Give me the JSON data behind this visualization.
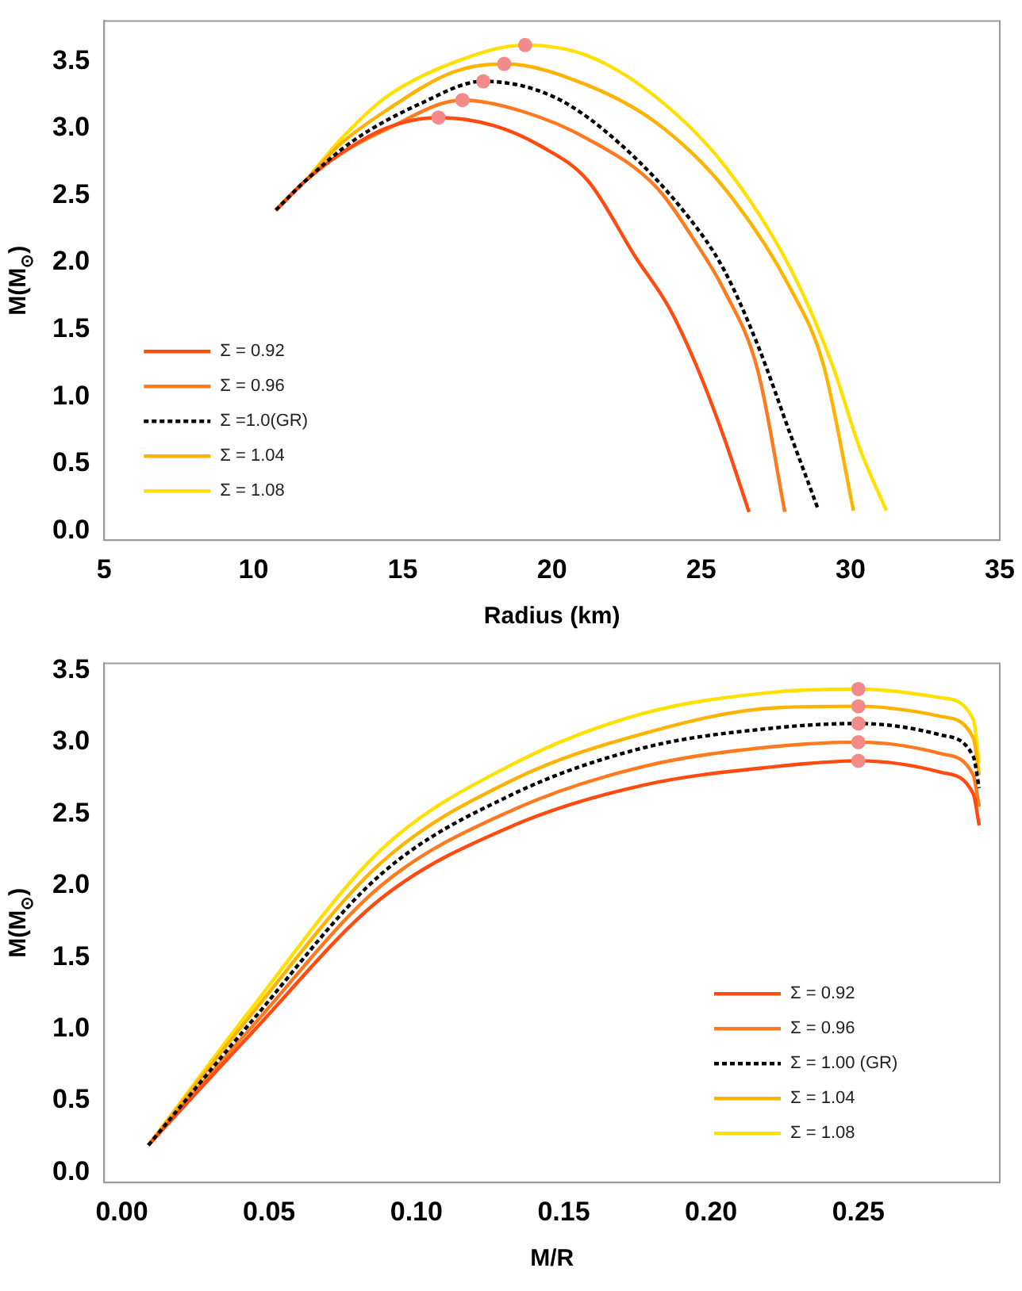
{
  "chart_data": [
    {
      "type": "line",
      "xlabel": "Radius (km)",
      "ylabel": "M(M$_{⊙}$)",
      "xlim": [
        5,
        35
      ],
      "ylim": [
        -0.07,
        3.8
      ],
      "xticks": [
        5,
        10,
        15,
        20,
        25,
        30,
        35
      ],
      "yticks": [
        {
          "value": 0,
          "label": "0.0"
        },
        0.5,
        {
          "value": 1,
          "label": "1.0"
        },
        1.5,
        {
          "value": 2,
          "label": "2.0"
        },
        2.5,
        {
          "value": 3,
          "label": "3.0"
        },
        3.5
      ],
      "grid": false,
      "legend": "bottom left",
      "marker": "none",
      "series": [
        {
          "name": "Σ = 0.92",
          "color": "#ff4a10",
          "line_style": "solid",
          "x": [
            10.75,
            11.7,
            12.85,
            14.43,
            16.2,
            18.05,
            19.6,
            21.2,
            22.8,
            23.93,
            24.84,
            25.74,
            26.6
          ],
          "values": [
            2.39,
            2.6,
            2.8,
            3.0,
            3.08,
            3.02,
            2.87,
            2.61,
            2.04,
            1.66,
            1.23,
            0.71,
            0.14
          ]
        },
        {
          "name": "Σ = 0.96",
          "color": "#ff7a1e",
          "line_style": "solid",
          "x": [
            10.75,
            11.7,
            12.85,
            14.43,
            17.0,
            18.95,
            21.2,
            23.5,
            24.84,
            25.75,
            26.9,
            27.8
          ],
          "values": [
            2.39,
            2.6,
            2.8,
            2.99,
            3.21,
            3.13,
            2.92,
            2.56,
            2.14,
            1.8,
            1.19,
            0.14
          ]
        },
        {
          "name": "Σ =1.0(GR)",
          "color": "#000000",
          "line_style": "dashed",
          "x": [
            10.75,
            11.7,
            13.3,
            15.56,
            17.7,
            20.1,
            22.35,
            24.6,
            25.75,
            26.9,
            28.0,
            28.9
          ],
          "values": [
            2.39,
            2.6,
            2.9,
            3.18,
            3.35,
            3.23,
            2.87,
            2.33,
            1.95,
            1.38,
            0.71,
            0.17
          ]
        },
        {
          "name": "Σ = 1.04",
          "color": "#ffb300",
          "line_style": "solid",
          "x": [
            10.75,
            11.7,
            12.85,
            14.43,
            16.7,
            18.4,
            21.2,
            23.5,
            25.75,
            28.0,
            29.1,
            30.1
          ],
          "values": [
            2.39,
            2.6,
            2.87,
            3.13,
            3.42,
            3.48,
            3.32,
            3.04,
            2.56,
            1.8,
            1.23,
            0.15
          ]
        },
        {
          "name": "Σ = 1.08",
          "color": "#ffe000",
          "line_style": "solid",
          "x": [
            10.75,
            11.7,
            12.85,
            14.43,
            16.7,
            19.1,
            21.2,
            23.5,
            25.75,
            28.0,
            29.4,
            30.3,
            31.2
          ],
          "values": [
            2.39,
            2.6,
            2.9,
            3.23,
            3.49,
            3.62,
            3.54,
            3.23,
            2.73,
            1.95,
            1.23,
            0.62,
            0.15
          ]
        },
        {
          "type": "scatter",
          "color": "#f28a8a",
          "marker": "circle",
          "x": [
            16.2,
            17.0,
            17.7,
            18.4,
            19.1
          ],
          "values": [
            3.08,
            3.21,
            3.35,
            3.48,
            3.62
          ]
        }
      ]
    },
    {
      "type": "line",
      "xlabel": "M/R",
      "ylabel": "M(M$_{⊙}$)",
      "xlim": [
        -0.006,
        0.298
      ],
      "ylim": [
        -0.07,
        3.55
      ],
      "xticks": [
        {
          "value": 0,
          "label": "0.00"
        },
        0.05,
        {
          "value": 0.1,
          "label": "0.10"
        },
        0.15,
        {
          "value": 0.2,
          "label": "0.20"
        },
        0.25
      ],
      "yticks": [
        {
          "value": 0,
          "label": "0.0"
        },
        0.5,
        {
          "value": 1,
          "label": "1.0"
        },
        1.5,
        {
          "value": 2,
          "label": "2.0"
        },
        2.5,
        {
          "value": 3,
          "label": "3.0"
        },
        3.5
      ],
      "grid": false,
      "legend": "bottom right",
      "marker": "none",
      "series": [
        {
          "name": "Σ = 0.92",
          "color": "#ff4a10",
          "line_style": "solid",
          "x": [
            0.009,
            0.0435,
            0.088,
            0.133,
            0.177,
            0.222,
            0.25,
            0.278,
            0.289,
            0.291
          ],
          "values": [
            0.19,
            0.96,
            1.91,
            2.42,
            2.7,
            2.83,
            2.87,
            2.79,
            2.64,
            2.42
          ]
        },
        {
          "name": "Σ = 0.96",
          "color": "#ff7a1e",
          "line_style": "solid",
          "x": [
            0.009,
            0.0435,
            0.088,
            0.133,
            0.177,
            0.222,
            0.25,
            0.278,
            0.289,
            0.291
          ],
          "values": [
            0.19,
            1.0,
            2.0,
            2.53,
            2.83,
            2.97,
            3.0,
            2.92,
            2.77,
            2.55
          ]
        },
        {
          "name": "Σ = 1.00 (GR)",
          "color": "#000000",
          "line_style": "dashed",
          "x": [
            0.009,
            0.0435,
            0.088,
            0.133,
            0.177,
            0.222,
            0.25,
            0.278,
            0.289,
            0.291
          ],
          "values": [
            0.19,
            1.04,
            2.08,
            2.64,
            2.96,
            3.1,
            3.13,
            3.05,
            2.9,
            2.68
          ]
        },
        {
          "name": "Σ = 1.04",
          "color": "#ffb300",
          "line_style": "solid",
          "x": [
            0.009,
            0.0435,
            0.088,
            0.133,
            0.177,
            0.222,
            0.25,
            0.278,
            0.289,
            0.291
          ],
          "values": [
            0.19,
            1.09,
            2.16,
            2.74,
            3.06,
            3.24,
            3.25,
            3.18,
            3.03,
            2.77
          ]
        },
        {
          "name": "Σ = 1.08",
          "color": "#ffe000",
          "line_style": "solid",
          "x": [
            0.009,
            0.0435,
            0.088,
            0.133,
            0.177,
            0.222,
            0.25,
            0.278,
            0.289,
            0.291
          ],
          "values": [
            0.19,
            1.13,
            2.25,
            2.85,
            3.2,
            3.35,
            3.37,
            3.31,
            3.16,
            2.85
          ]
        },
        {
          "type": "scatter",
          "color": "#f28a8a",
          "marker": "circle",
          "x": [
            0.25,
            0.25,
            0.25,
            0.25,
            0.25
          ],
          "values": [
            2.87,
            3.0,
            3.13,
            3.25,
            3.37
          ]
        }
      ]
    }
  ]
}
